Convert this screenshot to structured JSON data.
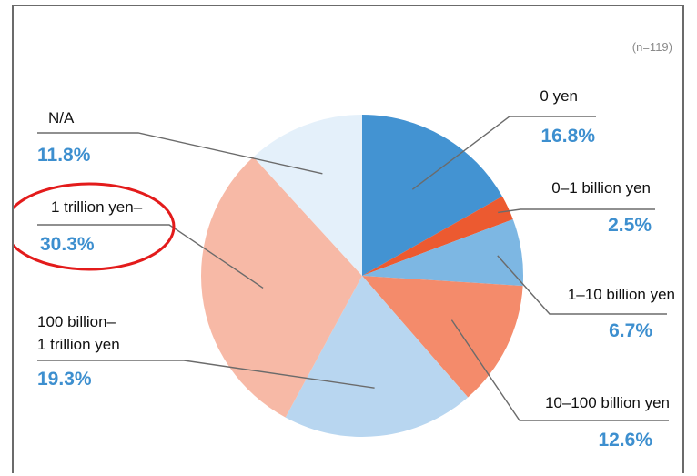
{
  "sample_size_note": "(n=119)",
  "chart_data": {
    "type": "pie",
    "title": "",
    "categories": [
      "0 yen",
      "0–1 billion yen",
      "1–10 billion yen",
      "10–100 billion yen",
      "100 billion– 1 trillion yen",
      "1 trillion yen–",
      "N/A"
    ],
    "values": [
      16.8,
      2.5,
      6.7,
      12.6,
      19.3,
      30.3,
      11.8
    ],
    "value_labels": [
      "16.8%",
      "2.5%",
      "6.7%",
      "12.6%",
      "19.3%",
      "30.3%",
      "11.8%"
    ],
    "colors": [
      "#4393d2",
      "#ec5a30",
      "#7db7e3",
      "#f48b6b",
      "#b8d6f0",
      "#f7b9a6",
      "#e4f0fa"
    ],
    "label_color": "#3d8fcf",
    "start_angle": "12 o'clock",
    "direction": "clockwise",
    "highlight": {
      "category": "1 trillion yen–",
      "style": "red circle",
      "color": "#e31b1b"
    }
  }
}
